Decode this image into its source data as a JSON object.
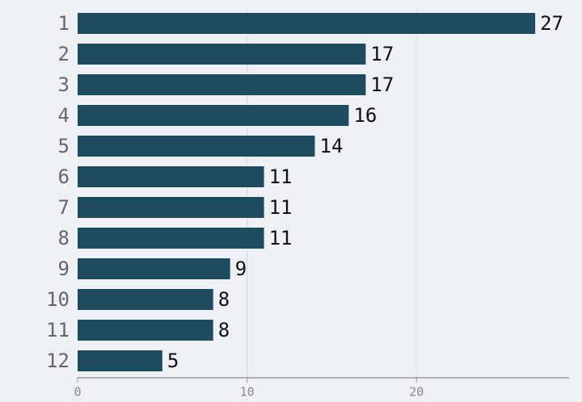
{
  "chart_data": {
    "type": "barh",
    "categories": [
      "1",
      "2",
      "3",
      "4",
      "5",
      "6",
      "7",
      "8",
      "9",
      "10",
      "11",
      "12"
    ],
    "values": [
      27,
      17,
      17,
      16,
      14,
      11,
      11,
      11,
      9,
      8,
      8,
      5
    ],
    "color": "#1f4b5f",
    "xlim": [
      0,
      29
    ],
    "xticks": [
      0,
      10,
      20
    ],
    "grid": true
  }
}
